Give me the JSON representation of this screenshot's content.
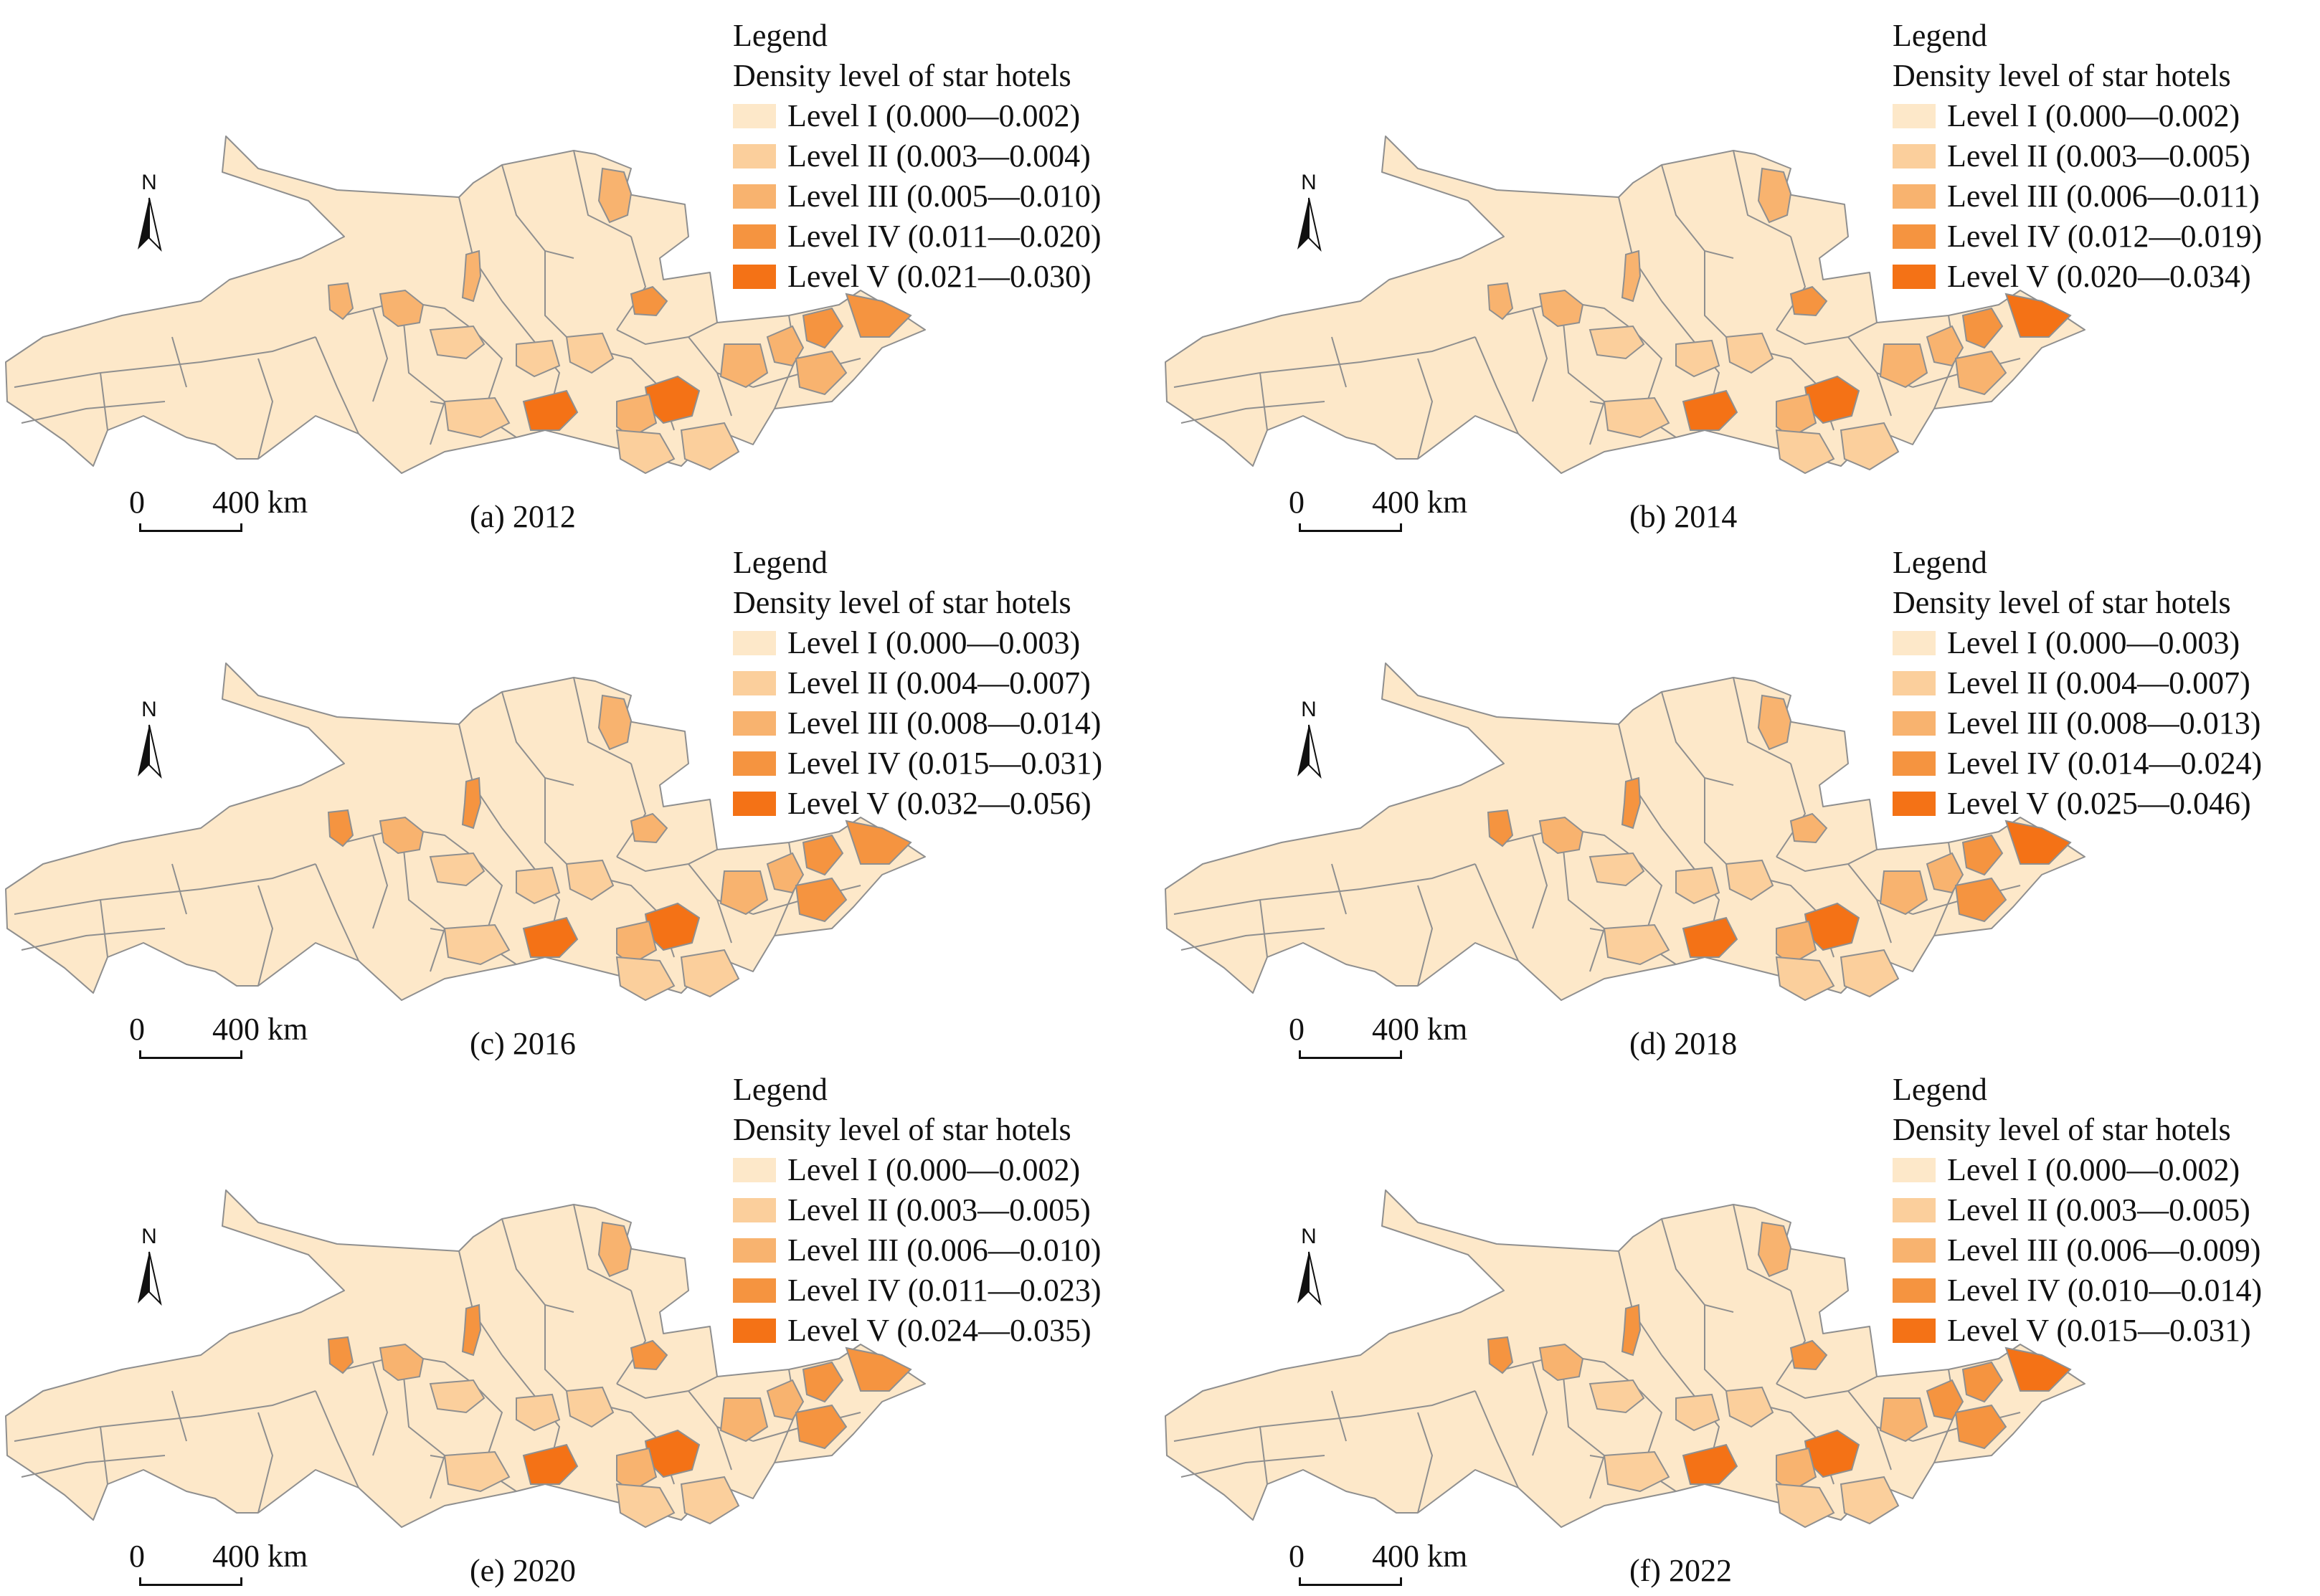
{
  "legend_heading": "Legend",
  "legend_subtitle": "Density level of star hotels",
  "north_label": "N",
  "scale": {
    "zero": "0",
    "max": "400 km"
  },
  "colors": {
    "level_1": "#fde8c9",
    "level_2": "#fbcf9c",
    "level_3": "#f8b36f",
    "level_4": "#f59440",
    "level_5": "#f47216",
    "border": "#8f8f8f"
  },
  "panels": [
    {
      "caption": "(a) 2012",
      "levels": [
        {
          "label": "Level I (0.000—0.002)"
        },
        {
          "label": "Level II (0.003—0.004)"
        },
        {
          "label": "Level III (0.005—0.010)"
        },
        {
          "label": "Level IV (0.011—0.020)"
        },
        {
          "label": "Level V (0.021—0.030)"
        }
      ]
    },
    {
      "caption": "(b) 2014",
      "levels": [
        {
          "label": "Level I (0.000—0.002)"
        },
        {
          "label": "Level II (0.003—0.005)"
        },
        {
          "label": "Level III (0.006—0.011)"
        },
        {
          "label": "Level IV (0.012—0.019)"
        },
        {
          "label": "Level V (0.020—0.034)"
        }
      ]
    },
    {
      "caption": "(c) 2016",
      "levels": [
        {
          "label": "Level I (0.000—0.003)"
        },
        {
          "label": "Level II (0.004—0.007)"
        },
        {
          "label": "Level III (0.008—0.014)"
        },
        {
          "label": "Level IV (0.015—0.031)"
        },
        {
          "label": "Level V (0.032—0.056)"
        }
      ]
    },
    {
      "caption": "(d) 2018",
      "levels": [
        {
          "label": "Level I (0.000—0.003)"
        },
        {
          "label": "Level II (0.004—0.007)"
        },
        {
          "label": "Level III (0.008—0.013)"
        },
        {
          "label": "Level IV (0.014—0.024)"
        },
        {
          "label": "Level V (0.025—0.046)"
        }
      ]
    },
    {
      "caption": "(e) 2020",
      "levels": [
        {
          "label": "Level I (0.000—0.002)"
        },
        {
          "label": "Level II (0.003—0.005)"
        },
        {
          "label": "Level III (0.006—0.010)"
        },
        {
          "label": "Level IV (0.011—0.023)"
        },
        {
          "label": "Level V (0.024—0.035)"
        }
      ]
    },
    {
      "caption": "(f) 2022",
      "levels": [
        {
          "label": "Level I (0.000—0.002)"
        },
        {
          "label": "Level II (0.003—0.005)"
        },
        {
          "label": "Level III (0.006—0.009)"
        },
        {
          "label": "Level IV (0.010—0.014)"
        },
        {
          "label": "Level V (0.015—0.031)"
        }
      ]
    }
  ]
}
